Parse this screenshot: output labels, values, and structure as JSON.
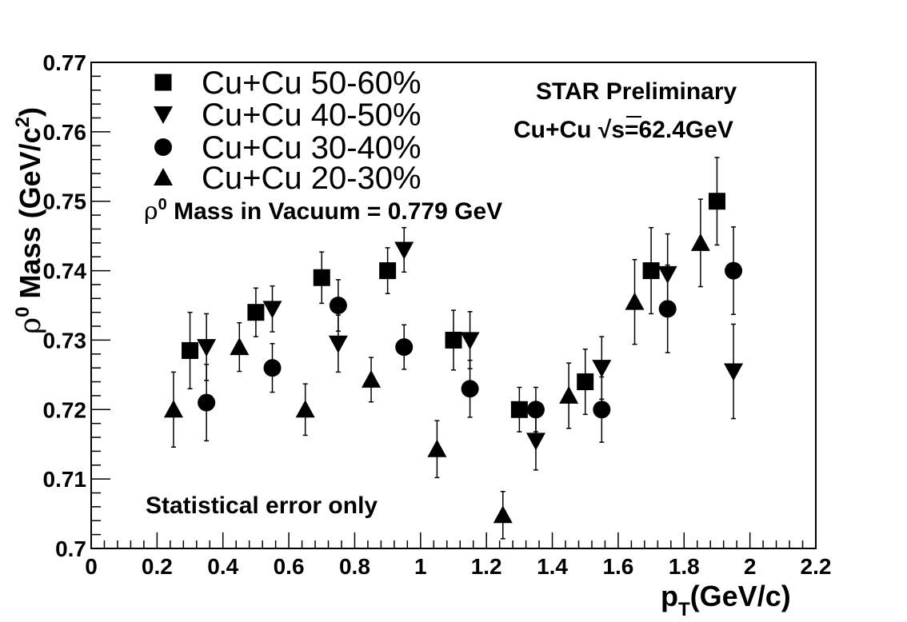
{
  "chart_data": {
    "type": "scatter",
    "title": "",
    "xlabel": "p",
    "xlabel_sub": "T",
    "xlabel_unit": "(GeV/c)",
    "ylabel_rho": "ρ",
    "ylabel_sup": "0",
    "ylabel_text": " Mass (GeV/c",
    "ylabel_sup2": "2",
    "ylabel_close": ")",
    "xlim": [
      0,
      2.2
    ],
    "ylim": [
      0.7,
      0.77
    ],
    "x_ticks": [
      0,
      0.2,
      0.4,
      0.6,
      0.8,
      1,
      1.2,
      1.4,
      1.6,
      1.8,
      2,
      2.2
    ],
    "x_tick_labels": [
      "0",
      "0.2",
      "0.4",
      "0.6",
      "0.8",
      "1",
      "1.2",
      "1.4",
      "1.6",
      "1.8",
      "2",
      "2.2"
    ],
    "y_ticks": [
      0.7,
      0.71,
      0.72,
      0.73,
      0.74,
      0.75,
      0.76,
      0.77
    ],
    "y_tick_labels": [
      "0.7",
      "0.71",
      "0.72",
      "0.73",
      "0.74",
      "0.75",
      "0.76",
      "0.77"
    ],
    "grid": false,
    "legend_position": "top-left",
    "series": [
      {
        "name": "Cu+Cu 50-60%",
        "marker": "square",
        "x": [
          0.3,
          0.5,
          0.7,
          0.9,
          1.1,
          1.3,
          1.5,
          1.7,
          1.9
        ],
        "y": [
          0.7285,
          0.734,
          0.739,
          0.74,
          0.73,
          0.72,
          0.724,
          0.74,
          0.75
        ],
        "yerr": [
          0.0055,
          0.0035,
          0.0037,
          0.0033,
          0.0043,
          0.0032,
          0.0047,
          0.0062,
          0.0063
        ]
      },
      {
        "name": "Cu+Cu 40-50%",
        "marker": "triangle-down",
        "x": [
          0.35,
          0.55,
          0.75,
          0.95,
          1.15,
          1.35,
          1.55,
          1.75,
          1.95
        ],
        "y": [
          0.729,
          0.7345,
          0.7295,
          0.743,
          0.73,
          0.7155,
          0.726,
          0.7395,
          0.7255
        ],
        "yerr": [
          0.0048,
          0.0033,
          0.0041,
          0.0032,
          0.0041,
          0.0042,
          0.0045,
          0.0058,
          0.0068
        ]
      },
      {
        "name": "Cu+Cu 30-40%",
        "marker": "circle",
        "x": [
          0.35,
          0.55,
          0.75,
          0.95,
          1.15,
          1.35,
          1.55,
          1.75,
          1.95
        ],
        "y": [
          0.721,
          0.726,
          0.735,
          0.729,
          0.723,
          0.72,
          0.72,
          0.7345,
          0.74
        ],
        "yerr": [
          0.0055,
          0.0035,
          0.0037,
          0.0032,
          0.0041,
          0.0032,
          0.0047,
          0.0063,
          0.0063
        ]
      },
      {
        "name": "Cu+Cu 20-30%",
        "marker": "triangle-up",
        "x": [
          0.25,
          0.45,
          0.65,
          0.85,
          1.05,
          1.25,
          1.45,
          1.65,
          1.85
        ],
        "y": [
          0.72,
          0.729,
          0.72,
          0.7243,
          0.7143,
          0.7048,
          0.722,
          0.7355,
          0.744
        ],
        "yerr": [
          0.0054,
          0.0035,
          0.0037,
          0.0032,
          0.0041,
          0.0034,
          0.0047,
          0.0061,
          0.0063
        ]
      }
    ],
    "annotations": {
      "star_preliminary": "STAR Preliminary",
      "collision_prefix": "Cu+Cu ",
      "sqrt_symbol": "√",
      "collision_suffix": "s=62.4GeV",
      "vacuum_rho": "ρ",
      "vacuum_sup": "0",
      "vacuum_text": " Mass in Vacuum = 0.779 GeV",
      "stat_note": "Statistical error only"
    }
  }
}
